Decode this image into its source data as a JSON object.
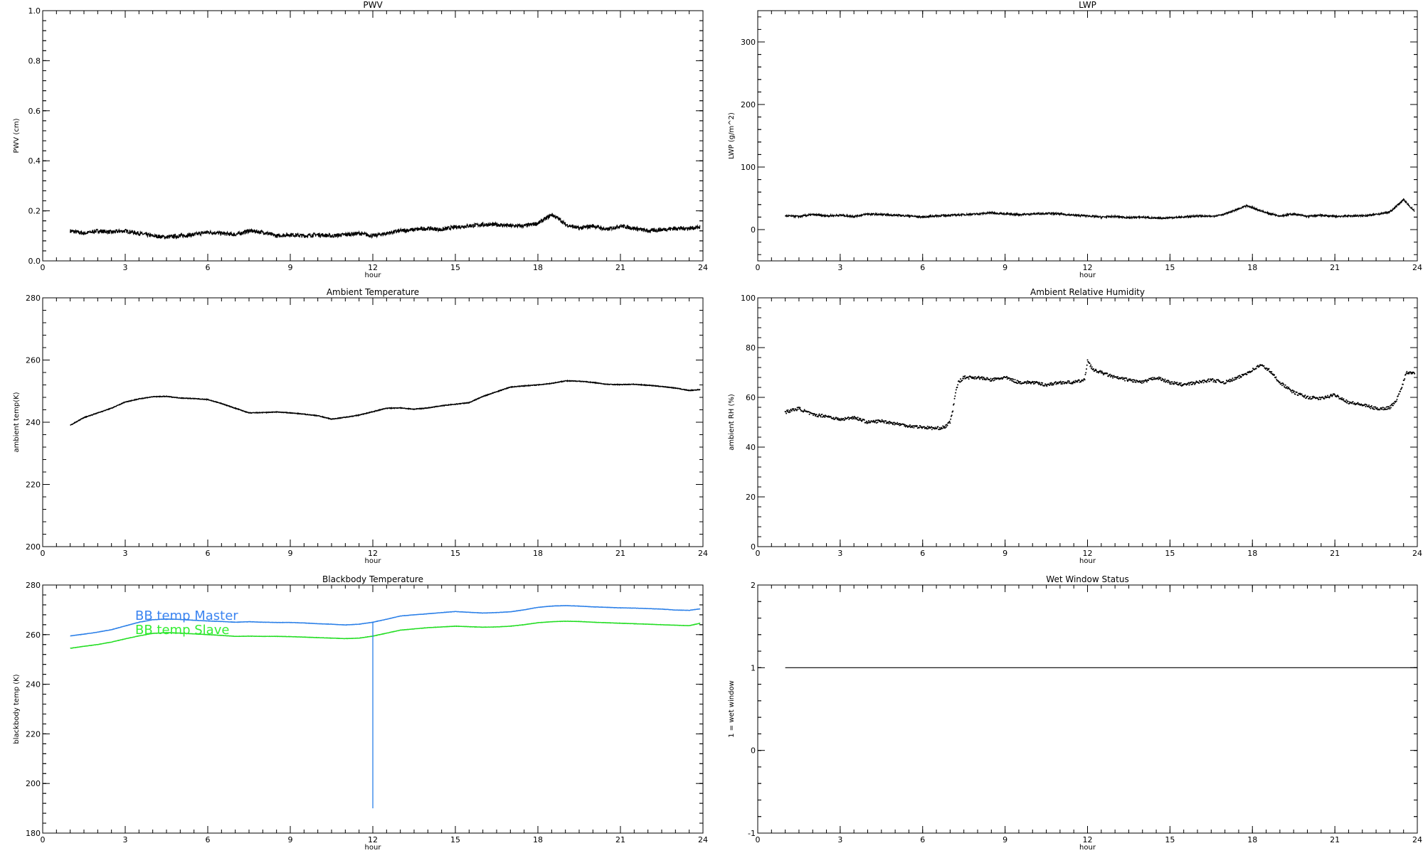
{
  "chart_data": [
    {
      "id": "pwv",
      "type": "line",
      "title": "PWV",
      "xlabel": "hour",
      "ylabel": "PWV (cm)",
      "xlim": [
        0,
        24
      ],
      "ylim": [
        0.0,
        1.0
      ],
      "xticks": [
        "0",
        "3",
        "6",
        "9",
        "12",
        "15",
        "18",
        "21",
        "24"
      ],
      "yticks": [
        "0.0",
        "0.2",
        "0.4",
        "0.6",
        "0.8",
        "1.0"
      ],
      "series": [
        {
          "color": "#000000",
          "noise": 0.008,
          "x": [
            1.0,
            1.5,
            2.0,
            2.5,
            3.0,
            3.5,
            4.0,
            4.5,
            5.0,
            5.5,
            6.0,
            6.5,
            7.0,
            7.5,
            8.0,
            8.5,
            9.0,
            9.5,
            10.0,
            10.5,
            11.0,
            11.5,
            12.0,
            12.5,
            13.0,
            13.5,
            14.0,
            14.5,
            15.0,
            15.5,
            16.0,
            16.5,
            17.0,
            17.5,
            18.0,
            18.3,
            18.5,
            18.8,
            19.0,
            19.5,
            20.0,
            20.5,
            21.0,
            21.5,
            22.0,
            22.5,
            23.0,
            23.5,
            23.9
          ],
          "y": [
            0.12,
            0.11,
            0.12,
            0.115,
            0.12,
            0.11,
            0.1,
            0.095,
            0.1,
            0.105,
            0.115,
            0.11,
            0.105,
            0.12,
            0.115,
            0.1,
            0.105,
            0.1,
            0.105,
            0.1,
            0.105,
            0.11,
            0.1,
            0.11,
            0.12,
            0.125,
            0.13,
            0.125,
            0.135,
            0.14,
            0.145,
            0.145,
            0.14,
            0.14,
            0.15,
            0.17,
            0.185,
            0.165,
            0.145,
            0.13,
            0.14,
            0.125,
            0.14,
            0.13,
            0.12,
            0.125,
            0.13,
            0.13,
            0.135
          ]
        }
      ]
    },
    {
      "id": "lwp",
      "type": "line",
      "title": "LWP",
      "xlabel": "hour",
      "ylabel": "LWP (g/m^2)",
      "xlim": [
        0,
        24
      ],
      "ylim": [
        -50,
        350
      ],
      "xticks": [
        "0",
        "3",
        "6",
        "9",
        "12",
        "15",
        "18",
        "21",
        "24"
      ],
      "yticks": [
        "0",
        "100",
        "200",
        "300"
      ],
      "ytick_values": [
        0,
        100,
        200,
        300
      ],
      "series": [
        {
          "color": "#000000",
          "noise": 1.5,
          "x": [
            1.0,
            1.5,
            2.0,
            2.5,
            3.0,
            3.5,
            4.0,
            4.5,
            5.0,
            5.5,
            6.0,
            6.5,
            7.0,
            7.5,
            8.0,
            8.5,
            9.0,
            9.5,
            10.0,
            10.5,
            11.0,
            11.5,
            12.0,
            12.5,
            13.0,
            13.5,
            14.0,
            14.5,
            15.0,
            15.5,
            16.0,
            16.5,
            17.0,
            17.5,
            17.8,
            18.0,
            18.5,
            19.0,
            19.5,
            20.0,
            20.5,
            21.0,
            21.5,
            22.0,
            22.5,
            23.0,
            23.3,
            23.5,
            23.7,
            23.9
          ],
          "y": [
            22,
            21,
            24,
            22,
            23,
            21,
            25,
            24,
            23,
            22,
            20,
            22,
            23,
            24,
            25,
            27,
            25,
            24,
            25,
            26,
            25,
            23,
            22,
            20,
            21,
            19,
            20,
            18,
            19,
            20,
            22,
            21,
            25,
            33,
            38,
            35,
            27,
            22,
            25,
            21,
            23,
            21,
            22,
            22,
            24,
            28,
            40,
            48,
            38,
            30
          ]
        }
      ]
    },
    {
      "id": "ambient-temp",
      "type": "line",
      "title": "Ambient Temperature",
      "xlabel": "hour",
      "ylabel": "ambient temp(K)",
      "xlim": [
        0,
        24
      ],
      "ylim": [
        200,
        280
      ],
      "xticks": [
        "0",
        "3",
        "6",
        "9",
        "12",
        "15",
        "18",
        "21",
        "24"
      ],
      "yticks": [
        "200",
        "220",
        "240",
        "260",
        "280"
      ],
      "series": [
        {
          "color": "#000000",
          "noise": 0.1,
          "x": [
            1.0,
            1.5,
            2.0,
            2.5,
            3.0,
            3.5,
            4.0,
            4.5,
            5.0,
            5.5,
            6.0,
            6.5,
            7.0,
            7.5,
            8.0,
            8.5,
            9.0,
            9.5,
            10.0,
            10.5,
            11.0,
            11.5,
            12.0,
            12.5,
            13.0,
            13.5,
            14.0,
            14.5,
            15.0,
            15.5,
            16.0,
            16.5,
            17.0,
            17.5,
            18.0,
            18.5,
            19.0,
            19.5,
            20.0,
            20.5,
            21.0,
            21.5,
            22.0,
            22.5,
            23.0,
            23.5,
            23.9
          ],
          "y": [
            239,
            241.5,
            243,
            244.5,
            246.5,
            247.5,
            248.2,
            248.3,
            247.8,
            247.6,
            247.3,
            246,
            244.5,
            243,
            243.1,
            243.3,
            243.0,
            242.6,
            242.1,
            241,
            241.6,
            242.3,
            243.4,
            244.5,
            244.6,
            244.2,
            244.6,
            245.3,
            245.8,
            246.3,
            248.3,
            249.8,
            251.3,
            251.7,
            252,
            252.5,
            253.3,
            253.2,
            252.8,
            252.2,
            252.1,
            252.2,
            251.9,
            251.5,
            251,
            250.2,
            250.5
          ]
        }
      ]
    },
    {
      "id": "ambient-rh",
      "type": "scatter",
      "title": "Ambient Relative Humidity",
      "xlabel": "hour",
      "ylabel": "ambient RH (%)",
      "xlim": [
        0,
        24
      ],
      "ylim": [
        0,
        100
      ],
      "xticks": [
        "0",
        "3",
        "6",
        "9",
        "12",
        "15",
        "18",
        "21",
        "24"
      ],
      "yticks": [
        "0",
        "20",
        "40",
        "60",
        "80",
        "100"
      ],
      "series": [
        {
          "color": "#000000",
          "noise": 0.6,
          "x": [
            1.0,
            1.3,
            1.5,
            1.8,
            2.0,
            2.5,
            3.0,
            3.5,
            4.0,
            4.5,
            5.0,
            5.5,
            6.0,
            6.5,
            6.8,
            7.0,
            7.1,
            7.2,
            7.3,
            7.5,
            8.0,
            8.5,
            9.0,
            9.5,
            10.0,
            10.5,
            11.0,
            11.5,
            11.9,
            12.0,
            12.2,
            12.5,
            13.0,
            13.5,
            14.0,
            14.5,
            15.0,
            15.5,
            16.0,
            16.5,
            17.0,
            17.5,
            18.0,
            18.3,
            18.6,
            19.0,
            19.5,
            20.0,
            20.5,
            21.0,
            21.5,
            22.0,
            22.5,
            22.8,
            23.0,
            23.2,
            23.4,
            23.6,
            23.9
          ],
          "y": [
            54,
            55,
            55.5,
            54,
            53,
            52.5,
            51,
            52,
            50,
            50.5,
            49.5,
            48.5,
            48,
            47.5,
            48,
            50,
            55,
            62,
            66,
            68,
            68,
            67,
            68,
            66,
            66,
            65,
            66,
            66,
            67,
            75,
            71,
            70,
            68,
            67,
            66,
            68,
            66,
            65,
            66,
            67,
            66,
            68,
            71,
            73,
            71,
            66,
            62,
            60,
            59.5,
            61,
            58,
            57,
            55.5,
            55.5,
            56,
            58,
            63,
            70,
            70
          ]
        }
      ]
    },
    {
      "id": "blackbody-temp",
      "type": "line",
      "title": "Blackbody Temperature",
      "xlabel": "hour",
      "ylabel": "blackbody temp (K)",
      "xlim": [
        0,
        24
      ],
      "ylim": [
        180,
        280
      ],
      "xticks": [
        "0",
        "3",
        "6",
        "9",
        "12",
        "15",
        "18",
        "21",
        "24"
      ],
      "yticks": [
        "180",
        "200",
        "220",
        "240",
        "260",
        "280"
      ],
      "legend": [
        "BB temp Master",
        "BB temp Slave"
      ],
      "legend_colors": [
        "#3b84f0",
        "#33ee33"
      ],
      "spike": {
        "x": 12.0,
        "y_top": 265,
        "y_bottom": 190
      },
      "series": [
        {
          "name": "BB temp Master",
          "color": "#2a7fe8",
          "noise": 0.05,
          "x": [
            1.0,
            1.5,
            2.0,
            2.5,
            3.0,
            3.5,
            4.0,
            4.5,
            5.0,
            5.5,
            6.0,
            6.5,
            7.0,
            7.5,
            8.0,
            8.5,
            9.0,
            9.5,
            10.0,
            10.5,
            11.0,
            11.5,
            12.0,
            12.5,
            13.0,
            13.5,
            14.0,
            14.5,
            15.0,
            15.5,
            16.0,
            16.5,
            17.0,
            17.5,
            18.0,
            18.5,
            19.0,
            19.5,
            20.0,
            20.5,
            21.0,
            21.5,
            22.0,
            22.5,
            23.0,
            23.5,
            23.9
          ],
          "y": [
            259.5,
            260.2,
            261.0,
            262.0,
            263.5,
            265.0,
            266.0,
            266.3,
            266.1,
            265.8,
            265.5,
            265.3,
            265.0,
            265.2,
            265.0,
            264.9,
            264.9,
            264.7,
            264.4,
            264.2,
            263.9,
            264.2,
            265.0,
            266.2,
            267.5,
            268.0,
            268.4,
            268.9,
            269.3,
            269.0,
            268.7,
            268.9,
            269.2,
            270.0,
            271.0,
            271.5,
            271.7,
            271.5,
            271.2,
            271.0,
            270.8,
            270.7,
            270.5,
            270.3,
            269.9,
            269.8,
            270.4
          ]
        },
        {
          "name": "BB temp Slave",
          "color": "#22dd22",
          "noise": 0.05,
          "x": [
            1.0,
            1.5,
            2.0,
            2.5,
            3.0,
            3.5,
            4.0,
            4.5,
            5.0,
            5.5,
            6.0,
            6.5,
            7.0,
            7.5,
            8.0,
            8.5,
            9.0,
            9.5,
            10.0,
            10.5,
            11.0,
            11.5,
            12.0,
            12.5,
            13.0,
            13.5,
            14.0,
            14.5,
            15.0,
            15.5,
            16.0,
            16.5,
            17.0,
            17.5,
            18.0,
            18.5,
            19.0,
            19.5,
            20.0,
            20.5,
            21.0,
            21.5,
            22.0,
            22.5,
            23.0,
            23.5,
            23.9
          ],
          "y": [
            254.5,
            255.3,
            256.0,
            257.0,
            258.3,
            259.5,
            260.5,
            260.8,
            260.6,
            260.3,
            260.0,
            259.7,
            259.3,
            259.4,
            259.3,
            259.3,
            259.2,
            259.0,
            258.8,
            258.6,
            258.4,
            258.6,
            259.4,
            260.6,
            261.8,
            262.3,
            262.8,
            263.1,
            263.4,
            263.2,
            263.0,
            263.1,
            263.4,
            264.0,
            264.8,
            265.2,
            265.4,
            265.3,
            265.0,
            264.8,
            264.6,
            264.4,
            264.2,
            264.0,
            263.8,
            263.6,
            264.6
          ]
        }
      ]
    },
    {
      "id": "wet-window",
      "type": "line",
      "title": "Wet Window Status",
      "xlabel": "hour",
      "ylabel": "1 = wet window",
      "xlim": [
        0,
        24
      ],
      "ylim": [
        -1,
        2
      ],
      "xticks": [
        "0",
        "3",
        "6",
        "9",
        "12",
        "15",
        "18",
        "21",
        "24"
      ],
      "yticks": [
        "-1",
        "0",
        "1",
        "2"
      ],
      "series": [
        {
          "color": "#000000",
          "noise": 0,
          "x": [
            1.0,
            24.0
          ],
          "y": [
            1,
            1
          ]
        }
      ]
    }
  ]
}
